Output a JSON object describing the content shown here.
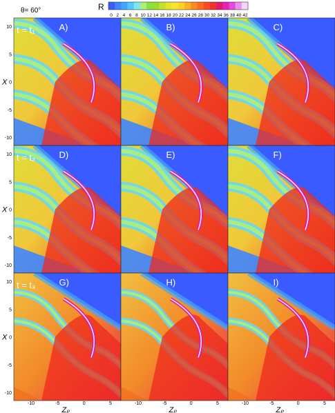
{
  "angle_label": "θ= 60°",
  "colorbar": {
    "title": "R",
    "ticks": [
      "0",
      "2",
      "4",
      "6",
      "8",
      "10",
      "12",
      "14",
      "16",
      "18",
      "20",
      "22",
      "24",
      "26",
      "28",
      "30",
      "32",
      "34",
      "36",
      "38",
      "40",
      "42"
    ],
    "colors": [
      "#3a5bff",
      "#3f86ff",
      "#41a6ff",
      "#52c7ff",
      "#7fe6ec",
      "#a8f07a",
      "#84e241",
      "#9adc2c",
      "#c4e02a",
      "#e3e526",
      "#f6e52a",
      "#ffd21e",
      "#ffb020",
      "#ff8a1d",
      "#ff6a1c",
      "#ff4a1e",
      "#f2302d",
      "#e5186a",
      "#ea1fb4",
      "#e04ae0",
      "#e890f0",
      "#f2d8f6"
    ]
  },
  "rows": [
    {
      "time_label": "t = t₁",
      "panels": [
        "A)",
        "B)",
        "C)"
      ]
    },
    {
      "time_label": "t = t₂",
      "panels": [
        "D)",
        "E)",
        "F)"
      ]
    },
    {
      "time_label": "t = t₃",
      "panels": [
        "G)",
        "H)",
        "I)"
      ]
    }
  ],
  "axes": {
    "ylabel": "X",
    "xlabel": "Zₚ",
    "y_ticks": [
      "10",
      "5",
      "0",
      "-5",
      "-10"
    ],
    "x_ticks": [
      "-10",
      "-5",
      "0",
      "5"
    ]
  }
}
